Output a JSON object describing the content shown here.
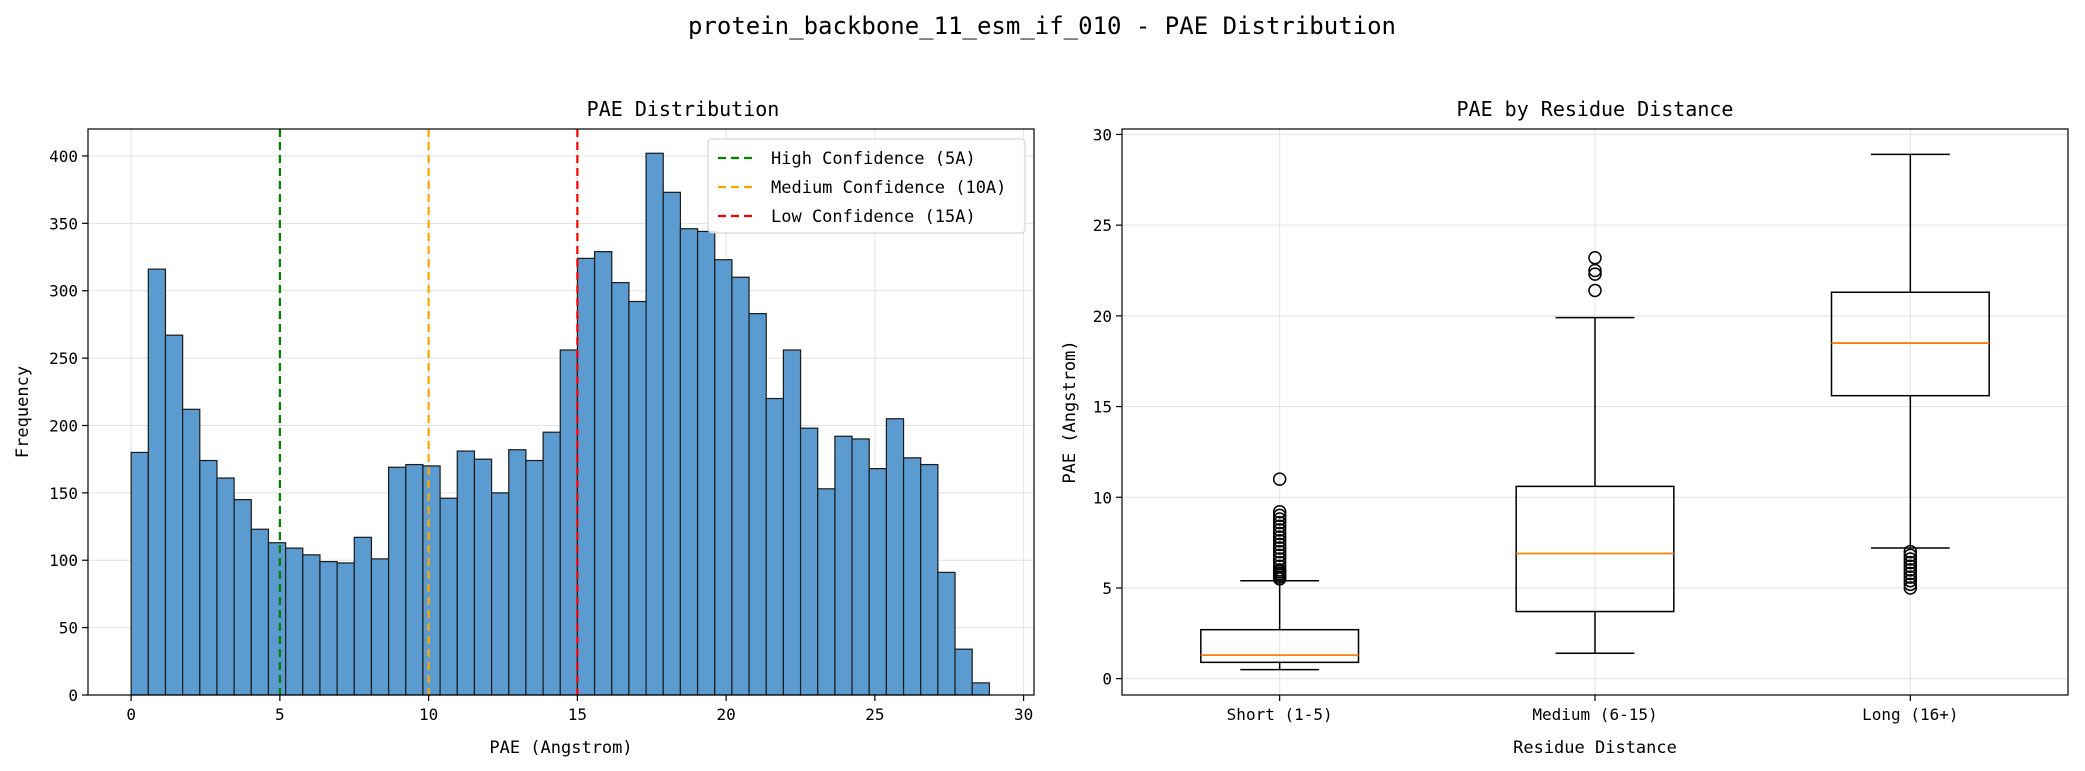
{
  "figure": {
    "suptitle": "protein_backbone_11_esm_if_010 - PAE Distribution"
  },
  "chart_data": [
    {
      "type": "bar",
      "title": "PAE Distribution",
      "xlabel": "PAE (Angstrom)",
      "ylabel": "Frequency",
      "xlim": [
        -1.45,
        30.35
      ],
      "ylim": [
        0,
        420
      ],
      "xticks": [
        0,
        5,
        10,
        15,
        20,
        25,
        30
      ],
      "yticks": [
        0,
        50,
        100,
        150,
        200,
        250,
        300,
        350,
        400
      ],
      "grid": true,
      "bar_color": "#5b9bd0",
      "bin_width": 0.577,
      "bin_start": 0.0,
      "values": [
        180,
        316,
        267,
        212,
        174,
        161,
        145,
        123,
        113,
        109,
        104,
        99,
        98,
        117,
        101,
        169,
        171,
        170,
        146,
        181,
        175,
        150,
        182,
        174,
        195,
        256,
        324,
        329,
        306,
        292,
        402,
        373,
        346,
        344,
        323,
        310,
        283,
        220,
        256,
        198,
        153,
        192,
        190,
        168,
        205,
        176,
        171,
        91,
        34,
        9
      ],
      "vlines": [
        {
          "x": 5,
          "color": "#008000",
          "label": "High Confidence (5A)"
        },
        {
          "x": 10,
          "color": "#ffa500",
          "label": "Medium Confidence (10A)"
        },
        {
          "x": 15,
          "color": "#ff0000",
          "label": "Low Confidence (15A)"
        }
      ],
      "legend_position": "upper-right"
    },
    {
      "type": "box",
      "title": "PAE by Residue Distance",
      "xlabel": "Residue Distance",
      "ylabel": "PAE (Angstrom)",
      "ylim": [
        -0.9,
        30.3
      ],
      "yticks": [
        0,
        5,
        10,
        15,
        20,
        25,
        30
      ],
      "grid": true,
      "median_color": "#ff7f0e",
      "categories": [
        "Short (1-5)",
        "Medium (6-15)",
        "Long (16+)"
      ],
      "boxes": [
        {
          "whislo": 0.5,
          "q1": 0.9,
          "med": 1.3,
          "q3": 2.7,
          "whishi": 5.4,
          "fliers": [
            5.5,
            5.6,
            5.7,
            5.8,
            5.9,
            6.0,
            6.2,
            6.4,
            6.6,
            6.8,
            7.0,
            7.2,
            7.4,
            7.6,
            7.8,
            8.0,
            8.2,
            8.4,
            8.6,
            8.8,
            9.0,
            9.2,
            11.0
          ]
        },
        {
          "whislo": 1.4,
          "q1": 3.7,
          "med": 6.9,
          "q3": 10.6,
          "whishi": 19.9,
          "fliers": [
            21.4,
            22.3,
            22.5,
            23.2
          ]
        },
        {
          "whislo": 7.2,
          "q1": 15.6,
          "med": 18.5,
          "q3": 21.3,
          "whishi": 28.9,
          "fliers": [
            5.0,
            5.2,
            5.4,
            5.6,
            5.8,
            6.0,
            6.2,
            6.4,
            6.6,
            6.8,
            7.0
          ]
        }
      ]
    }
  ]
}
